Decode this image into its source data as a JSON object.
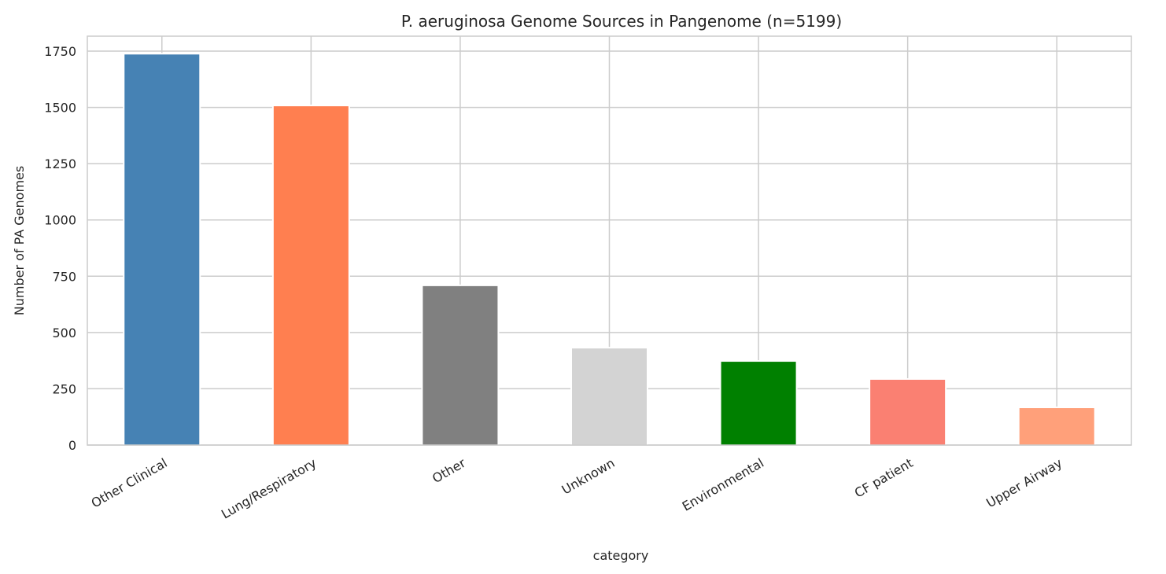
{
  "chart_data": {
    "type": "bar",
    "title": "P. aeruginosa Genome Sources in Pangenome (n=5199)",
    "xlabel": "category",
    "ylabel": "Number of PA Genomes",
    "categories": [
      "Other Clinical",
      "Lung/Respiratory",
      "Other",
      "Unknown",
      "Environmental",
      "CF patient",
      "Upper Airway"
    ],
    "values": [
      1735,
      1505,
      706,
      429,
      370,
      290,
      164
    ],
    "colors": [
      "#4682b4",
      "#ff7f50",
      "#808080",
      "#d3d3d3",
      "#008000",
      "#fa8072",
      "#ffa07a"
    ],
    "yticks": [
      0,
      250,
      500,
      750,
      1000,
      1250,
      1500,
      1750
    ],
    "ylim": [
      0,
      1822
    ],
    "grid": true,
    "legend": null
  }
}
